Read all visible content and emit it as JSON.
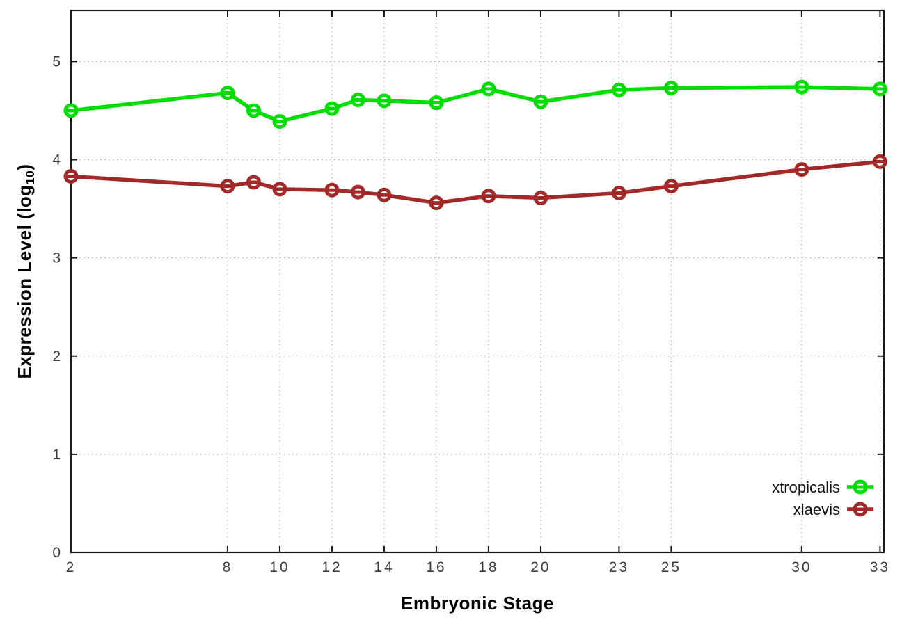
{
  "page": {
    "background": "#ffffff"
  },
  "axis_titles": {
    "x": "Embryonic Stage",
    "y_prefix": "Expression Level (log",
    "y_sub": "10",
    "y_suffix": ")"
  },
  "chart_data": {
    "type": "line",
    "title": "",
    "xlabel": "Embryonic Stage",
    "ylabel": "Expression Level (log10)",
    "x": [
      2,
      8,
      9,
      10,
      12,
      13,
      14,
      16,
      18,
      20,
      23,
      25,
      30,
      33
    ],
    "series": [
      {
        "name": "xtropicalis",
        "color": "#00dd00",
        "marker": "open-circle-hline",
        "values": [
          4.5,
          4.68,
          4.5,
          4.39,
          4.52,
          4.61,
          4.6,
          4.58,
          4.72,
          4.59,
          4.71,
          4.73,
          4.74,
          4.72
        ]
      },
      {
        "name": "xlaevis",
        "color": "#a32828",
        "marker": "open-circle-hline",
        "values": [
          3.83,
          3.73,
          3.77,
          3.7,
          3.69,
          3.67,
          3.64,
          3.56,
          3.63,
          3.61,
          3.66,
          3.73,
          3.9,
          3.98
        ]
      }
    ],
    "xticks": [
      2,
      8,
      10,
      12,
      14,
      16,
      18,
      20,
      23,
      25,
      30,
      33
    ],
    "yticks": [
      0,
      1,
      2,
      3,
      4,
      5
    ],
    "xlim": [
      2,
      33.15
    ],
    "ylim": [
      0,
      5.52
    ],
    "grid": true,
    "grid_style": "dotted",
    "legend_position": "bottom-right",
    "style": {
      "axis_color": "#1a1a1a",
      "grid_color": "#aaaaaa",
      "tick_label_color": "#3c3c3c",
      "background": "#ffffff"
    }
  }
}
